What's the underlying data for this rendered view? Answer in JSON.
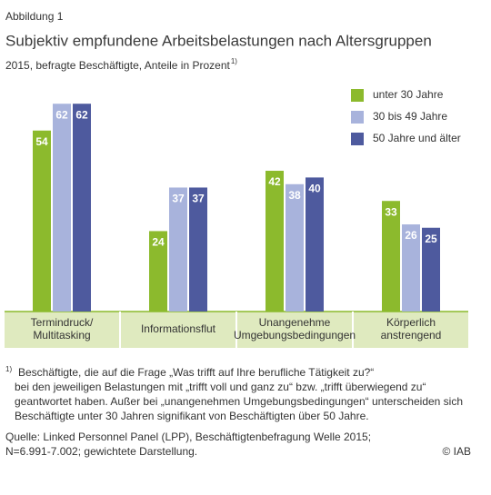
{
  "chart_data": {
    "type": "bar",
    "label": "Abbildung 1",
    "title": "Subjektiv empfundene Arbeitsbelastungen nach Altersgruppen",
    "subtitle": "2015, befragte Beschäftigte, Anteile in Prozent",
    "subtitle_note": "1)",
    "categories": [
      [
        "Termindruck/",
        "Multitasking"
      ],
      [
        "Informationsflut"
      ],
      [
        "Unangenehme",
        "Umgebungsbedingungen"
      ],
      [
        "Körperlich",
        "anstrengend"
      ]
    ],
    "series": [
      {
        "name": "unter 30 Jahre",
        "color": "#8cba2d",
        "values": [
          54,
          24,
          42,
          33
        ]
      },
      {
        "name": "30 bis 49 Jahre",
        "color": "#a8b3dc",
        "values": [
          62,
          37,
          38,
          26
        ]
      },
      {
        "name": "50 Jahre und älter",
        "color": "#4e5a9e",
        "values": [
          62,
          37,
          40,
          25
        ]
      }
    ],
    "legend": "top-right",
    "footnote_marker": "1)",
    "footnote": [
      "Beschäftigte, die auf die Frage „Was trifft auf Ihre berufliche Tätigkeit zu?“",
      "bei den jeweiligen Belastungen mit „trifft voll und ganz zu“ bzw. „trifft überwiegend zu“",
      "geantwortet haben. Außer bei „unangenehmen Umgebungsbedingungen“ unterscheiden sich",
      "Beschäftigte unter 30 Jahren signifikant von Beschäftigten über 50 Jahre."
    ],
    "source": [
      "Quelle: Linked Personnel Panel (LPP), Beschäftigtenbefragung Welle 2015;",
      "N=6.991-7.002; gewichtete Darstellung."
    ],
    "copyright": "© IAB"
  }
}
